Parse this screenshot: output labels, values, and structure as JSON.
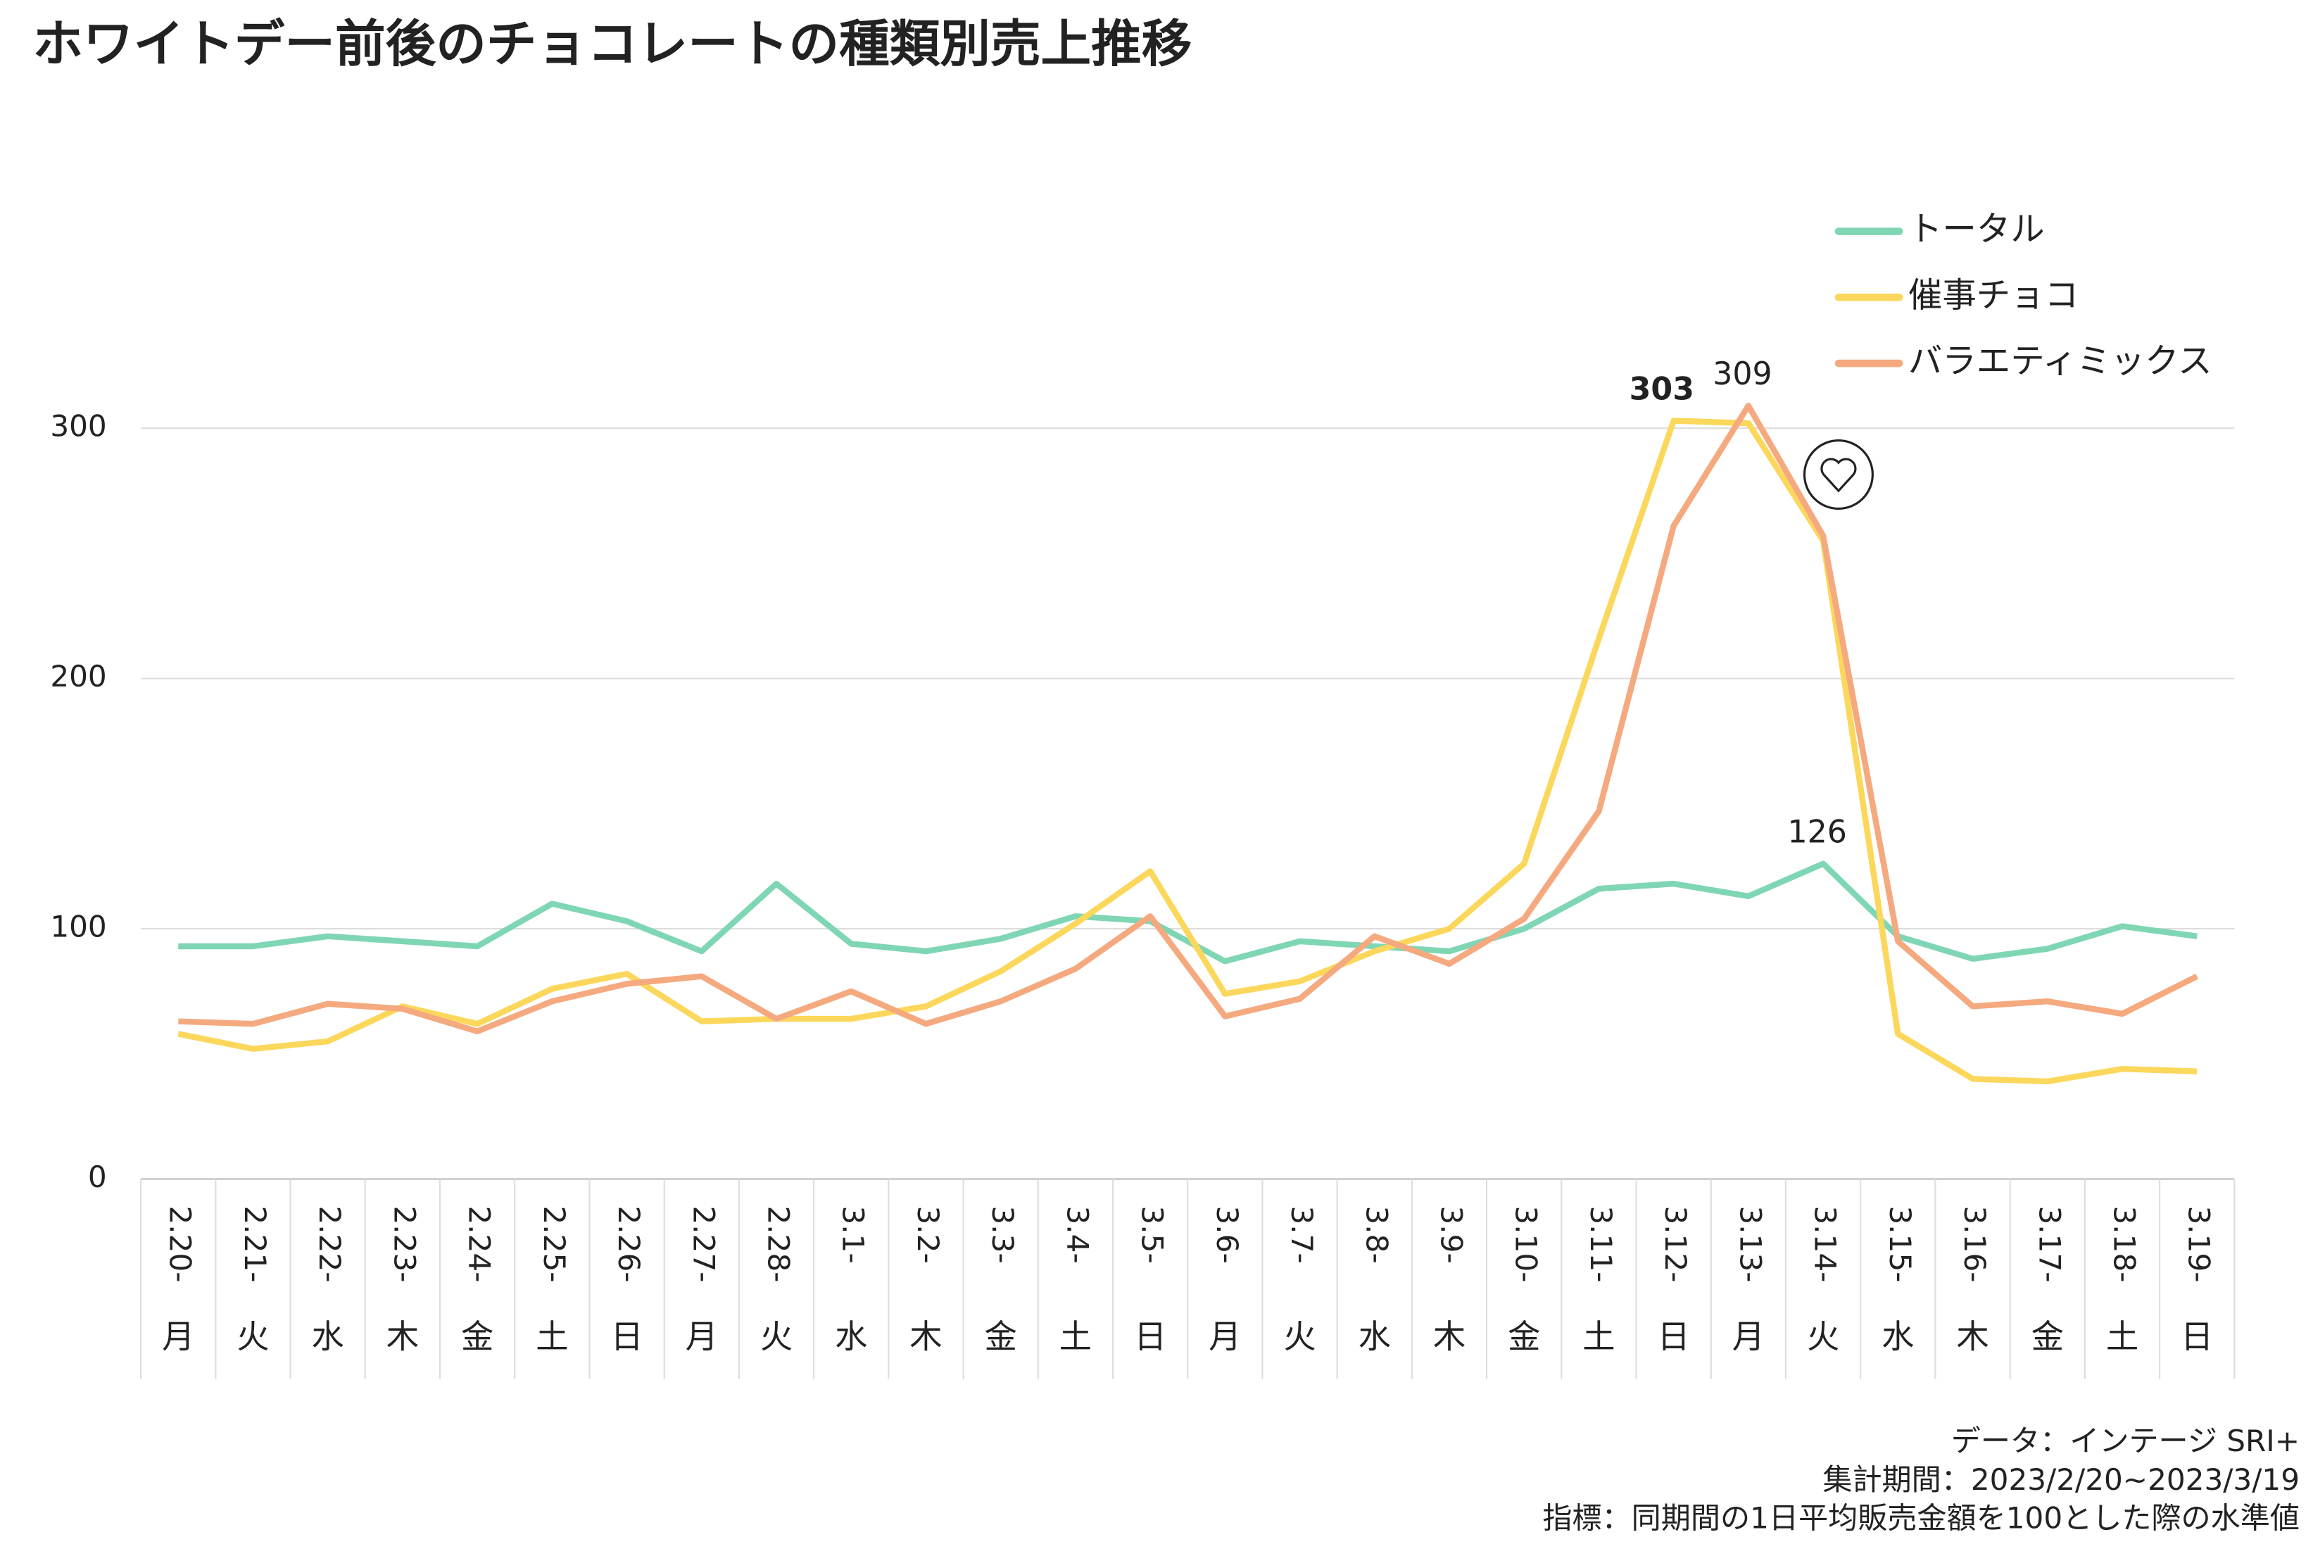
{
  "chart_data": {
    "type": "line",
    "title": "ホワイトデー前後のチョコレートの種類別売上推移",
    "categories": [
      "2.20-",
      "2.21-",
      "2.22-",
      "2.23-",
      "2.24-",
      "2.25-",
      "2.26-",
      "2.27-",
      "2.28-",
      "3.1-",
      "3.2-",
      "3.3-",
      "3.4-",
      "3.5-",
      "3.6-",
      "3.7-",
      "3.8-",
      "3.9-",
      "3.10-",
      "3.11-",
      "3.12-",
      "3.13-",
      "3.14-",
      "3.15-",
      "3.16-",
      "3.17-",
      "3.18-",
      "3.19-"
    ],
    "weekdays": [
      "月",
      "火",
      "水",
      "木",
      "金",
      "土",
      "日",
      "月",
      "火",
      "水",
      "木",
      "金",
      "土",
      "日",
      "月",
      "火",
      "水",
      "木",
      "金",
      "土",
      "日",
      "月",
      "火",
      "水",
      "木",
      "金",
      "土",
      "日"
    ],
    "series": [
      {
        "name": "トータル",
        "color": "#7fd6b4",
        "label_at": 22,
        "label_color": "#3cbf8f",
        "label_bold": false,
        "values": [
          93,
          93,
          97,
          95,
          93,
          110,
          103,
          91,
          118,
          94,
          91,
          96,
          105,
          103,
          87,
          95,
          93,
          91,
          100,
          116,
          118,
          113,
          126,
          97,
          88,
          92,
          101,
          97
        ]
      },
      {
        "name": "催事チョコ",
        "color": "#fbd75b",
        "label_at": 20,
        "label_color": "#f5b800",
        "label_bold": true,
        "values": [
          58,
          52,
          55,
          69,
          62,
          76,
          82,
          63,
          64,
          64,
          69,
          83,
          102,
          123,
          74,
          79,
          91,
          100,
          126,
          216,
          303,
          302,
          255,
          58,
          40,
          39,
          44,
          43
        ]
      },
      {
        "name": "バラエティミックス",
        "color": "#f5a97f",
        "label_at": 21,
        "label_color": "#e83828",
        "label_bold": false,
        "values": [
          63,
          62,
          70,
          68,
          59,
          71,
          78,
          81,
          64,
          75,
          62,
          71,
          84,
          105,
          65,
          72,
          97,
          86,
          104,
          147,
          261,
          309,
          257,
          95,
          69,
          71,
          66,
          81
        ]
      }
    ],
    "ylim": [
      0,
      400
    ],
    "yticks": [
      0,
      100,
      200,
      300
    ],
    "grid": true,
    "notes": [
      "データ：インテージ SRI+",
      "集計期間：2023/2/20~2023/3/19",
      "指標：同期間の1日平均販売金額を100とした際の水準値"
    ]
  }
}
